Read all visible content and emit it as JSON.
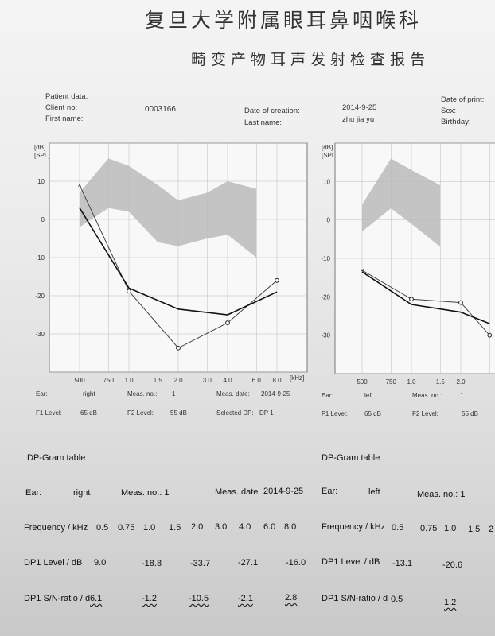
{
  "header": {
    "hospital": "复旦大学附属眼耳鼻咽喉科",
    "report_title": "畸变产物耳声发射检查报告"
  },
  "patient": {
    "patient_data_label": "Patient data:",
    "client_no_label": "Client no:",
    "client_no": "0003166",
    "first_name_label": "First name:",
    "date_creation_label": "Date of creation:",
    "date_creation": "2014-9-25",
    "last_name_label": "Last name:",
    "last_name": "zhu jia yu",
    "date_print_label": "Date of print:",
    "sex_label": "Sex:",
    "birthday_label": "Birthday:"
  },
  "chart_data": [
    {
      "type": "line",
      "title": "DP-Gram",
      "ylabel": "[dB] [SPL]",
      "xlabel": "[kHz]",
      "x_ticks": [
        "500",
        "750",
        "1.0",
        "1.5",
        "2.0",
        "3.0",
        "4.0",
        "6.0",
        "8.0"
      ],
      "y_ticks": [
        "10",
        "0",
        "-10",
        "-20",
        "-30"
      ],
      "ylim": [
        -40,
        20
      ],
      "noise_band_upper": [
        7,
        16,
        14,
        9,
        5,
        7,
        10,
        8
      ],
      "noise_band_lower": [
        -2,
        3,
        2,
        -6,
        -7,
        -5,
        -4,
        -10
      ],
      "series": [
        {
          "x": [
            0.5,
            1.0,
            2.0,
            4.0,
            8.0
          ],
          "values": [
            9.0,
            -18.8,
            -33.7,
            -27.1,
            -16.0
          ]
        },
        {
          "x": [
            0.5,
            1.0,
            2.0,
            4.0,
            8.0
          ],
          "values": [
            3,
            -18,
            -23.5,
            -25,
            -19
          ]
        }
      ]
    },
    {
      "type": "line",
      "title": "DP-Gram",
      "ylabel": "[dB] [SPL]",
      "x_ticks": [
        "500",
        "750",
        "1.0",
        "1.5",
        "2.0"
      ],
      "y_ticks": [
        "10",
        "0",
        "-10",
        "-20",
        "-30"
      ],
      "ylim": [
        -40,
        20
      ],
      "noise_band_upper": [
        4,
        16,
        13,
        9
      ],
      "noise_band_lower": [
        -3,
        3,
        -1,
        -7
      ],
      "series": [
        {
          "x": [
            0.5,
            1.0,
            2.0,
            3.0
          ],
          "values": [
            -13.1,
            -20.6,
            -21.5,
            -30
          ]
        },
        {
          "x": [
            0.5,
            1.0,
            2.0,
            3.0
          ],
          "values": [
            -13.5,
            -22,
            -24,
            -27
          ]
        }
      ]
    }
  ],
  "right_ear": {
    "ear_label": "Ear:",
    "ear": "right",
    "meas_label": "Meas. no.:",
    "meas": "1",
    "meas_date_label": "Meas. date:",
    "meas_date": "2014-9-25",
    "f1_label": "F1 Level:",
    "f1": "65 dB",
    "f2_label": "F2 Level:",
    "f2": "55 dB",
    "selected_label": "Selected DP:",
    "selected": "DP 1"
  },
  "left_ear": {
    "ear_label": "Ear:",
    "ear": "left",
    "meas_label": "Meas. no.:",
    "meas": "1",
    "f1_label": "F1 Level:",
    "f1": "65 dB",
    "f2_label": "F2 Level:",
    "f2": "55 dB"
  },
  "table_right": {
    "title": "DP-Gram table",
    "ear_label": "Ear:",
    "ear": "right",
    "meas_label": "Meas. no.: 1",
    "date_label": "Meas. date",
    "date": "2014-9-25",
    "freq_label": "Frequency / kHz",
    "freqs": [
      "0.5",
      "0.75",
      "1.0",
      "1.5",
      "2.0",
      "3.0",
      "4.0",
      "6.0",
      "8.0"
    ],
    "level_label": "DP1 Level / dB",
    "levels": [
      "9.0",
      "-18.8",
      "-33.7",
      "-27.1",
      "-16.0"
    ],
    "sn_label": "DP1 S/N-ratio / d",
    "sn": [
      "6.1",
      "-1.2",
      "-10.5",
      "-2.1",
      "2.8"
    ]
  },
  "table_left": {
    "title": "DP-Gram table",
    "ear_label": "Ear:",
    "ear": "left",
    "meas_label": "Meas. no.: 1",
    "freq_label": "Frequency / kHz",
    "freqs": [
      "0.5",
      "0.75",
      "1.0",
      "1.5",
      "2"
    ],
    "level_label": "DP1 Level / dB",
    "levels": [
      "-13.1",
      "-20.6"
    ],
    "sn_label": "DP1 S/N-ratio / d",
    "sn": [
      "0.5",
      "1.2"
    ]
  }
}
